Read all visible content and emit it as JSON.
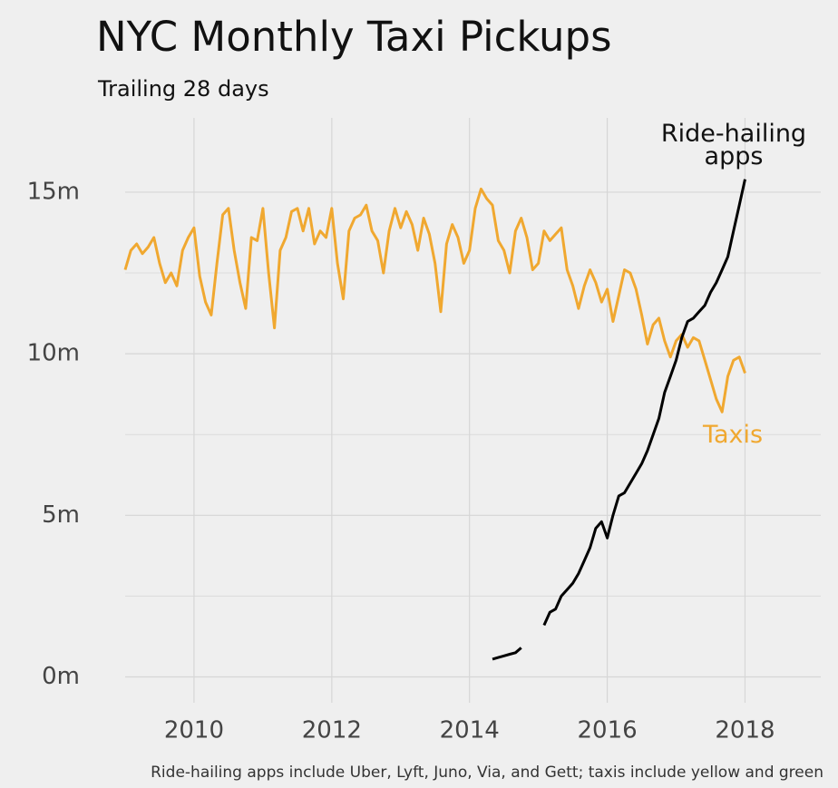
{
  "chart_data": {
    "type": "line",
    "title": "NYC Monthly Taxi Pickups",
    "subtitle": "Trailing 28 days",
    "caption": "Ride-hailing apps include Uber, Lyft, Juno, Via, and Gett; taxis include yellow and green",
    "x": [
      2009,
      2009.083,
      2009.167,
      2009.25,
      2009.333,
      2009.417,
      2009.5,
      2009.583,
      2009.667,
      2009.75,
      2009.833,
      2009.917,
      2010,
      2010.083,
      2010.167,
      2010.25,
      2010.333,
      2010.417,
      2010.5,
      2010.583,
      2010.667,
      2010.75,
      2010.833,
      2010.917,
      2011,
      2011.083,
      2011.167,
      2011.25,
      2011.333,
      2011.417,
      2011.5,
      2011.583,
      2011.667,
      2011.75,
      2011.833,
      2011.917,
      2012,
      2012.083,
      2012.167,
      2012.25,
      2012.333,
      2012.417,
      2012.5,
      2012.583,
      2012.667,
      2012.75,
      2012.833,
      2012.917,
      2013,
      2013.083,
      2013.167,
      2013.25,
      2013.333,
      2013.417,
      2013.5,
      2013.583,
      2013.667,
      2013.75,
      2013.833,
      2013.917,
      2014,
      2014.083,
      2014.167,
      2014.25,
      2014.333,
      2014.417,
      2014.5,
      2014.583,
      2014.667,
      2014.75,
      2014.833,
      2014.917,
      2015,
      2015.083,
      2015.167,
      2015.25,
      2015.333,
      2015.417,
      2015.5,
      2015.583,
      2015.667,
      2015.75,
      2015.833,
      2015.917,
      2016,
      2016.083,
      2016.167,
      2016.25,
      2016.333,
      2016.417,
      2016.5,
      2016.583,
      2016.667,
      2016.75,
      2016.833,
      2016.917,
      2017,
      2017.083,
      2017.167,
      2017.25,
      2017.333,
      2017.417,
      2017.5,
      2017.583,
      2017.667,
      2017.75,
      2017.833,
      2017.917,
      2018
    ],
    "series": [
      {
        "name": "Taxis",
        "color": "#f0a830",
        "values": [
          12.6,
          13.2,
          13.4,
          13.1,
          13.3,
          13.6,
          12.8,
          12.2,
          12.5,
          12.1,
          13.2,
          13.6,
          13.9,
          12.4,
          11.6,
          11.2,
          12.8,
          14.3,
          14.5,
          13.2,
          12.2,
          11.4,
          13.6,
          13.5,
          14.5,
          12.5,
          10.8,
          13.2,
          13.6,
          14.4,
          14.5,
          13.8,
          14.5,
          13.4,
          13.8,
          13.6,
          14.5,
          12.8,
          11.7,
          13.8,
          14.2,
          14.3,
          14.6,
          13.8,
          13.5,
          12.5,
          13.8,
          14.5,
          13.9,
          14.4,
          14.0,
          13.2,
          14.2,
          13.7,
          12.8,
          11.3,
          13.4,
          14.0,
          13.6,
          12.8,
          13.2,
          14.5,
          15.1,
          14.8,
          14.6,
          13.5,
          13.2,
          12.5,
          13.8,
          14.2,
          13.6,
          12.6,
          12.8,
          13.8,
          13.5,
          13.7,
          13.9,
          12.6,
          12.1,
          11.4,
          12.1,
          12.6,
          12.2,
          11.6,
          12.0,
          11.0,
          11.8,
          12.6,
          12.5,
          12.0,
          11.2,
          10.3,
          10.9,
          11.1,
          10.4,
          9.9,
          10.4,
          10.6,
          10.2,
          10.5,
          10.4,
          9.8,
          9.2,
          8.6,
          8.2,
          9.3,
          9.8,
          9.9,
          9.4
        ]
      },
      {
        "name": "Ride-hailing apps",
        "color": "#000000",
        "values": [
          null,
          null,
          null,
          null,
          null,
          null,
          null,
          null,
          null,
          null,
          null,
          null,
          null,
          null,
          null,
          null,
          null,
          null,
          null,
          null,
          null,
          null,
          null,
          null,
          null,
          null,
          null,
          null,
          null,
          null,
          null,
          null,
          null,
          null,
          null,
          null,
          null,
          null,
          null,
          null,
          null,
          null,
          null,
          null,
          null,
          null,
          null,
          null,
          null,
          null,
          null,
          null,
          null,
          null,
          null,
          null,
          null,
          null,
          null,
          null,
          null,
          null,
          null,
          null,
          0.55,
          0.6,
          0.65,
          0.7,
          0.75,
          0.9,
          null,
          null,
          null,
          1.6,
          2.0,
          2.1,
          2.5,
          2.7,
          2.9,
          3.2,
          3.6,
          4.0,
          4.6,
          4.8,
          4.3,
          5.0,
          5.6,
          5.7,
          6.0,
          6.3,
          6.6,
          7.0,
          7.5,
          8.0,
          8.8,
          9.3,
          9.8,
          10.5,
          11.0,
          11.1,
          11.3,
          11.5,
          11.9,
          12.2,
          12.6,
          13.0,
          13.8,
          14.6,
          15.4
        ]
      }
    ],
    "xlim": [
      2009,
      2019.1
    ],
    "xticks": [
      2010,
      2012,
      2014,
      2016,
      2018
    ],
    "ylim": [
      -0.8,
      17.3
    ],
    "yticks": [
      {
        "value": 0,
        "label": "0m"
      },
      {
        "value": 5,
        "label": "5m"
      },
      {
        "value": 10,
        "label": "10m"
      },
      {
        "value": 15,
        "label": "15m"
      }
    ],
    "y_minor_ticks": [
      2.5,
      7.5,
      12.5
    ],
    "grid": true
  }
}
